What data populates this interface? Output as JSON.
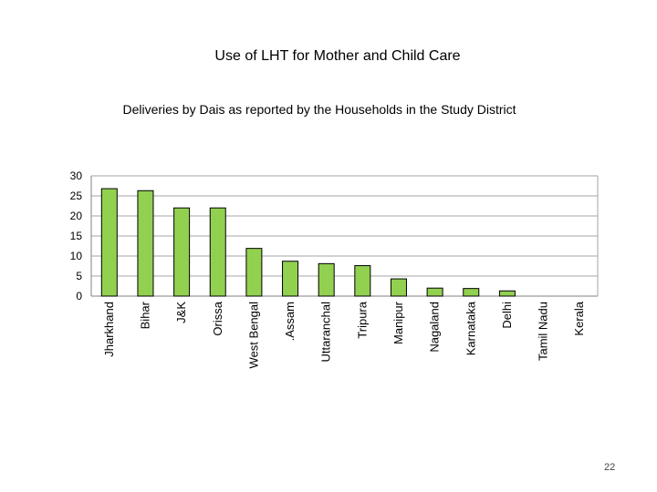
{
  "slide": {
    "title": "Use of LHT for Mother and Child Care",
    "page_number": "22"
  },
  "chart_data": {
    "type": "bar",
    "title": "Deliveries by Dais  as reported by the Households in the Study District",
    "categories": [
      "Jharkhand",
      "Bihar",
      "J&K",
      "Orissa",
      "West Bengal",
      ".Assam",
      "Uttaranchal",
      "Tripura",
      "Manipur",
      "Nagaland",
      "Karnataka",
      "Delhi",
      "Tamil Nadu",
      "Kerala"
    ],
    "values": [
      26.8,
      26.3,
      22,
      22,
      11.9,
      8.7,
      8.1,
      7.6,
      4.3,
      2,
      1.9,
      1.3,
      0,
      0
    ],
    "yticks": [
      0,
      5,
      10,
      15,
      20,
      25,
      30
    ],
    "ylim": [
      0,
      30
    ],
    "xlabel": "",
    "ylabel": "",
    "grid": true,
    "colors": {
      "bar": "#92d050",
      "bar_stroke": "#000000",
      "grid": "#a6a6a6",
      "axis": "#808080"
    }
  }
}
